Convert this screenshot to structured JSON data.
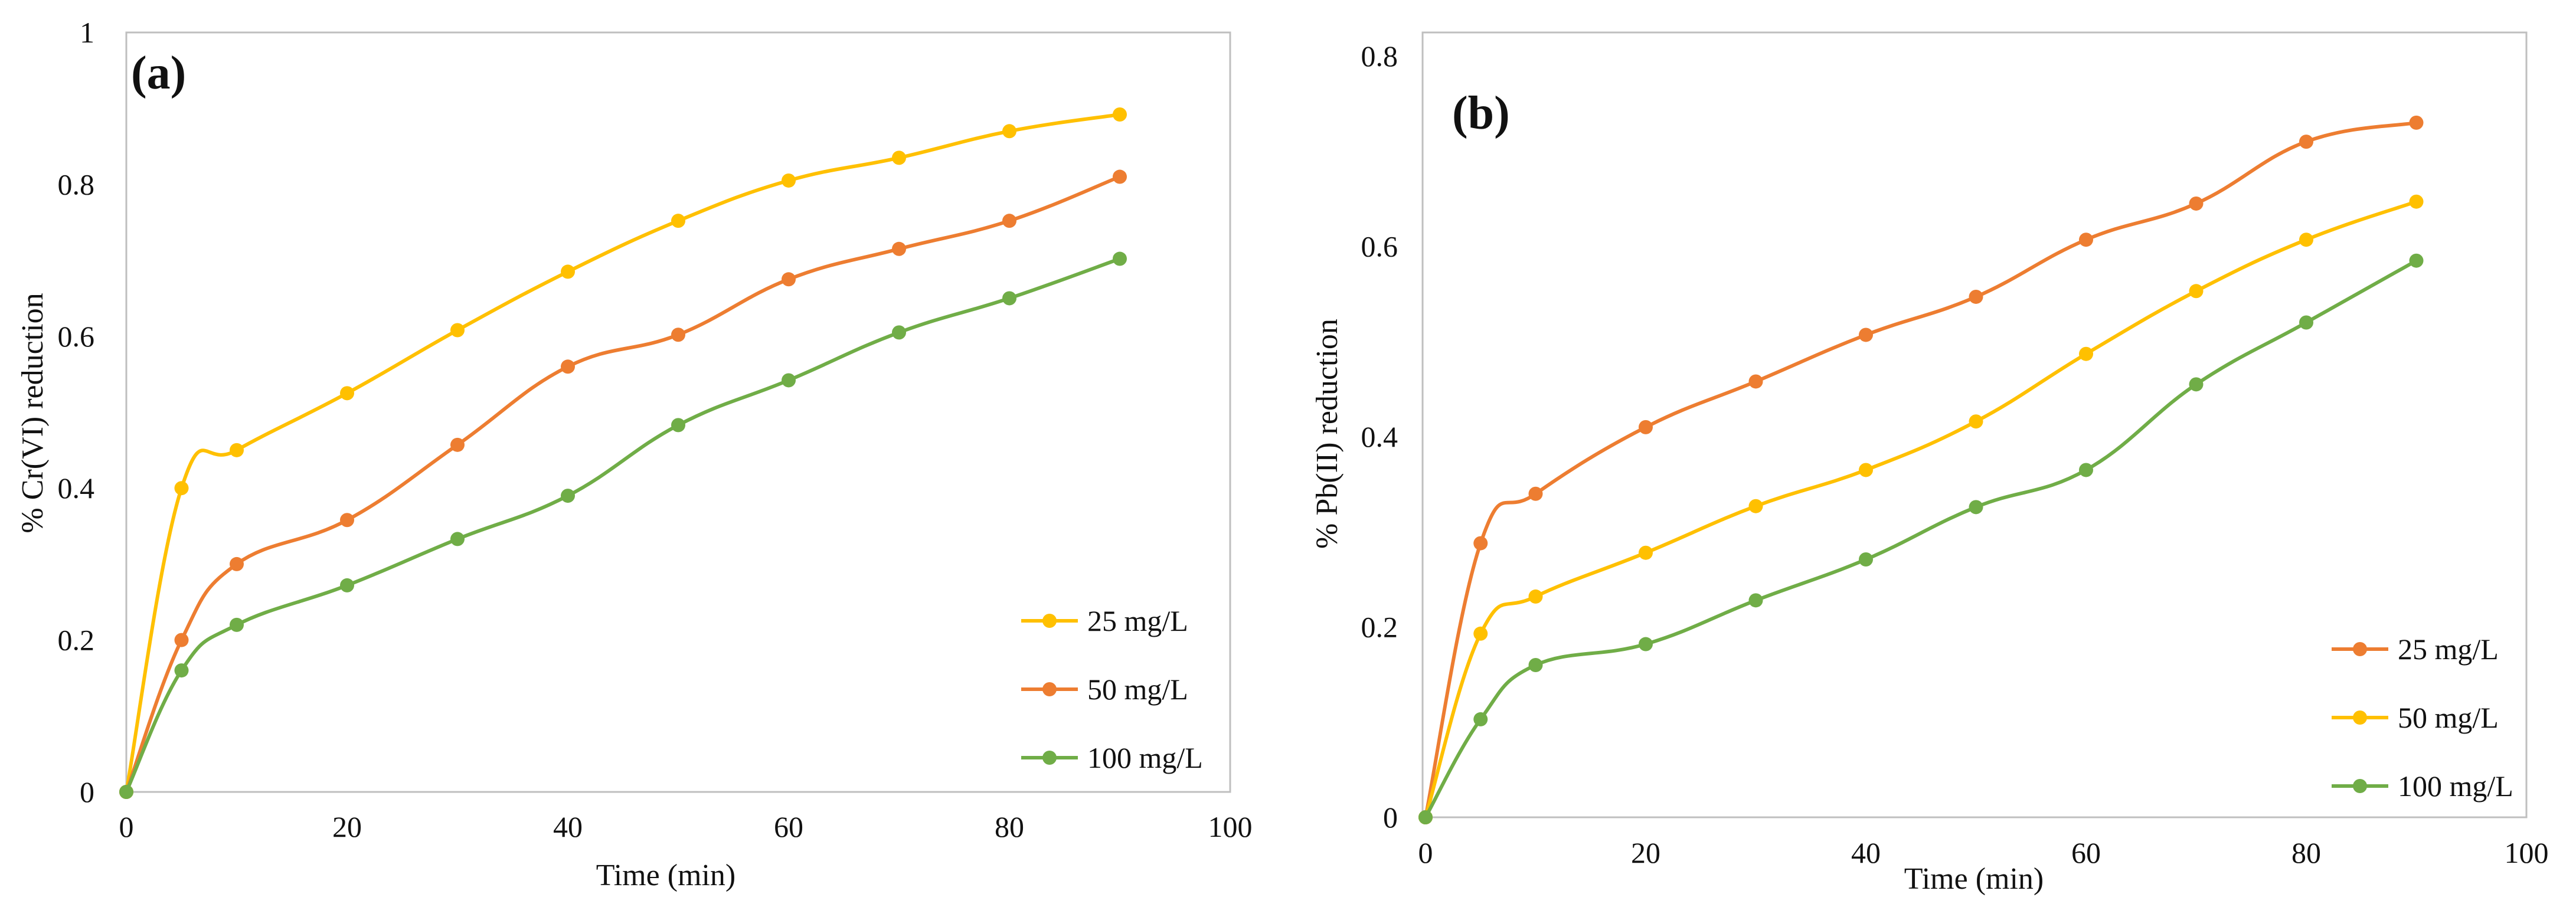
{
  "chart_data": [
    {
      "type": "line",
      "panel_label": "(a)",
      "title": "",
      "xlabel": "Time (min)",
      "ylabel": "% Cr(VI) reduction",
      "xlim": [
        0,
        100
      ],
      "ylim": [
        0,
        1
      ],
      "xticks": [
        "0",
        "20",
        "40",
        "60",
        "80",
        "100"
      ],
      "yticks": [
        "0",
        "0.2",
        "0.4",
        "0.6",
        "0.8",
        "1"
      ],
      "legend_position": "bottom-right",
      "series": [
        {
          "name": "25 mg/L",
          "color": "#FFC000",
          "points": [
            [
              0,
              0
            ],
            [
              5,
              0.4
            ],
            [
              10,
              0.45
            ],
            [
              20,
              0.525
            ],
            [
              30,
              0.608
            ],
            [
              40,
              0.685
            ],
            [
              50,
              0.752
            ],
            [
              60,
              0.805
            ],
            [
              70,
              0.835
            ],
            [
              80,
              0.87
            ],
            [
              90,
              0.892
            ]
          ]
        },
        {
          "name": "50 mg/L",
          "color": "#ED7D31",
          "points": [
            [
              0,
              0
            ],
            [
              5,
              0.2
            ],
            [
              10,
              0.3
            ],
            [
              20,
              0.358
            ],
            [
              30,
              0.457
            ],
            [
              40,
              0.56
            ],
            [
              50,
              0.602
            ],
            [
              60,
              0.675
            ],
            [
              70,
              0.715
            ],
            [
              80,
              0.752
            ],
            [
              90,
              0.81
            ]
          ]
        },
        {
          "name": "100 mg/L",
          "color": "#70AD47",
          "points": [
            [
              0,
              0
            ],
            [
              5,
              0.16
            ],
            [
              10,
              0.22
            ],
            [
              20,
              0.272
            ],
            [
              30,
              0.333
            ],
            [
              40,
              0.39
            ],
            [
              50,
              0.483
            ],
            [
              60,
              0.542
            ],
            [
              70,
              0.605
            ],
            [
              80,
              0.65
            ],
            [
              90,
              0.702
            ]
          ]
        }
      ]
    },
    {
      "type": "line",
      "panel_label": "(b)",
      "title": "",
      "xlabel": "Time (min)",
      "ylabel": "% Pb(II) reduction",
      "xlim": [
        0,
        100
      ],
      "ylim": [
        0,
        0.8
      ],
      "xticks": [
        "0",
        "20",
        "40",
        "60",
        "80",
        "100"
      ],
      "yticks": [
        "0",
        "0.2",
        "0.4",
        "0.6",
        "0.8"
      ],
      "legend_position": "bottom-right",
      "series": [
        {
          "name": "25 mg/L",
          "color": "#ED7D31",
          "points": [
            [
              0,
              0
            ],
            [
              5,
              0.288
            ],
            [
              10,
              0.34
            ],
            [
              20,
              0.41
            ],
            [
              30,
              0.458
            ],
            [
              40,
              0.507
            ],
            [
              50,
              0.547
            ],
            [
              60,
              0.607
            ],
            [
              70,
              0.645
            ],
            [
              80,
              0.71
            ],
            [
              90,
              0.73
            ]
          ]
        },
        {
          "name": "50 mg/L",
          "color": "#FFC000",
          "points": [
            [
              0,
              0
            ],
            [
              5,
              0.193
            ],
            [
              10,
              0.232
            ],
            [
              20,
              0.278
            ],
            [
              30,
              0.327
            ],
            [
              40,
              0.365
            ],
            [
              50,
              0.416
            ],
            [
              60,
              0.487
            ],
            [
              70,
              0.553
            ],
            [
              80,
              0.607
            ],
            [
              90,
              0.647
            ]
          ]
        },
        {
          "name": "100 mg/L",
          "color": "#70AD47",
          "points": [
            [
              0,
              0
            ],
            [
              5,
              0.103
            ],
            [
              10,
              0.16
            ],
            [
              20,
              0.182
            ],
            [
              30,
              0.228
            ],
            [
              40,
              0.271
            ],
            [
              50,
              0.326
            ],
            [
              60,
              0.365
            ],
            [
              70,
              0.455
            ],
            [
              80,
              0.52
            ],
            [
              90,
              0.585
            ]
          ]
        }
      ]
    }
  ]
}
